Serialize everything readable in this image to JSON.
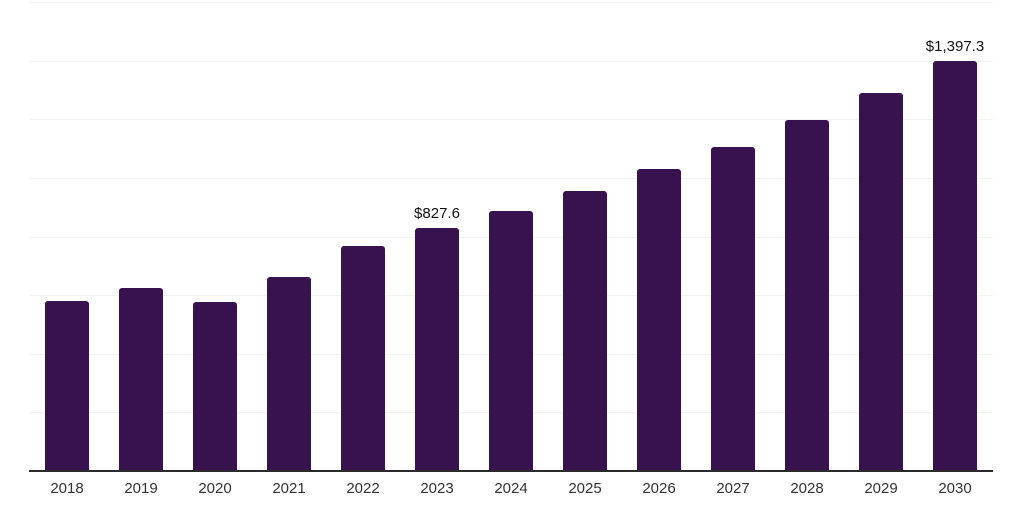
{
  "chart_data": {
    "type": "bar",
    "categories": [
      "2018",
      "2019",
      "2020",
      "2021",
      "2022",
      "2023",
      "2024",
      "2025",
      "2026",
      "2027",
      "2028",
      "2029",
      "2030"
    ],
    "values": [
      580,
      626,
      577,
      661,
      768,
      827.6,
      887,
      954,
      1030,
      1106,
      1197,
      1291,
      1397.3
    ],
    "labels": [
      null,
      null,
      null,
      null,
      null,
      "$827.6",
      null,
      null,
      null,
      null,
      null,
      null,
      "$1,397.3"
    ],
    "ylim": [
      0,
      1600
    ],
    "gridline_interval": 200,
    "grid": "horizontal",
    "legend": "none",
    "colors": {
      "bar": "#37124e",
      "axis": "#2b2b2b",
      "gridline": "#f2f2f2",
      "tick_label": "#333333",
      "value_label": "#111111",
      "background": "#ffffff"
    }
  }
}
